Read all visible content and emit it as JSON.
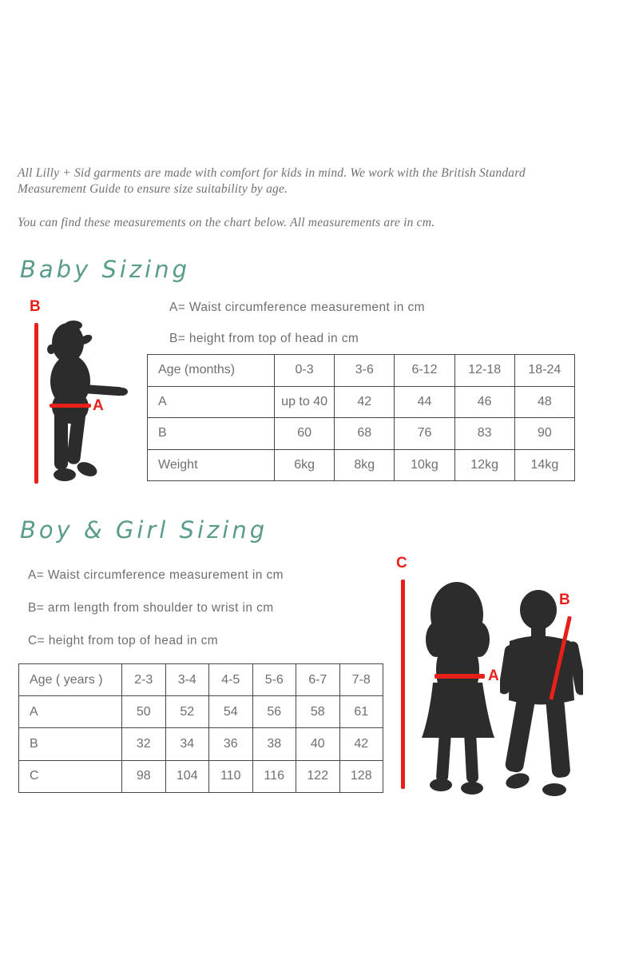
{
  "colors": {
    "accent_red": "#e8201a",
    "heading_teal": "#5a9c8b",
    "body_text_gray": "#6e6e6e",
    "intro_text_gray": "#716f6f",
    "silhouette_black": "#2c2c2c",
    "table_border_gray": "#474747",
    "page_background": "#ffffff"
  },
  "intro": {
    "paragraph1": "All Lilly + Sid garments are made with comfort for kids in mind. We work with the British Standard\nMeasurement Guide to ensure size suitability by age.",
    "paragraph2": "You can find these measurements on the chart below. All measurements are in cm."
  },
  "baby_section": {
    "heading": "Baby Sizing",
    "legend": [
      "A= Waist circumference measurement in cm",
      "B= height from top of head in cm"
    ],
    "diagram_labels": {
      "height": "B",
      "waist": "A"
    },
    "table": {
      "header": [
        "Age (months)",
        "0-3",
        "3-6",
        "6-12",
        "12-18",
        "18-24"
      ],
      "rows": [
        [
          "A",
          "up to 40",
          "42",
          "44",
          "46",
          "48"
        ],
        [
          "B",
          "60",
          "68",
          "76",
          "83",
          "90"
        ],
        [
          "Weight",
          "6kg",
          "8kg",
          "10kg",
          "12kg",
          "14kg"
        ]
      ]
    }
  },
  "kids_section": {
    "heading": "Boy & Girl Sizing",
    "legend": [
      "A= Waist circumference measurement in cm",
      "B= arm length from shoulder to wrist in cm",
      "C= height from top of head in cm"
    ],
    "diagram_labels": {
      "height": "C",
      "waist": "A",
      "arm": "B"
    },
    "table": {
      "header": [
        "Age ( years )",
        "2-3",
        "3-4",
        "4-5",
        "5-6",
        "6-7",
        "7-8"
      ],
      "rows": [
        [
          "A",
          "50",
          "52",
          "54",
          "56",
          "58",
          "61"
        ],
        [
          "B",
          "32",
          "34",
          "36",
          "38",
          "40",
          "42"
        ],
        [
          "C",
          "98",
          "104",
          "110",
          "116",
          "122",
          "128"
        ]
      ]
    }
  }
}
